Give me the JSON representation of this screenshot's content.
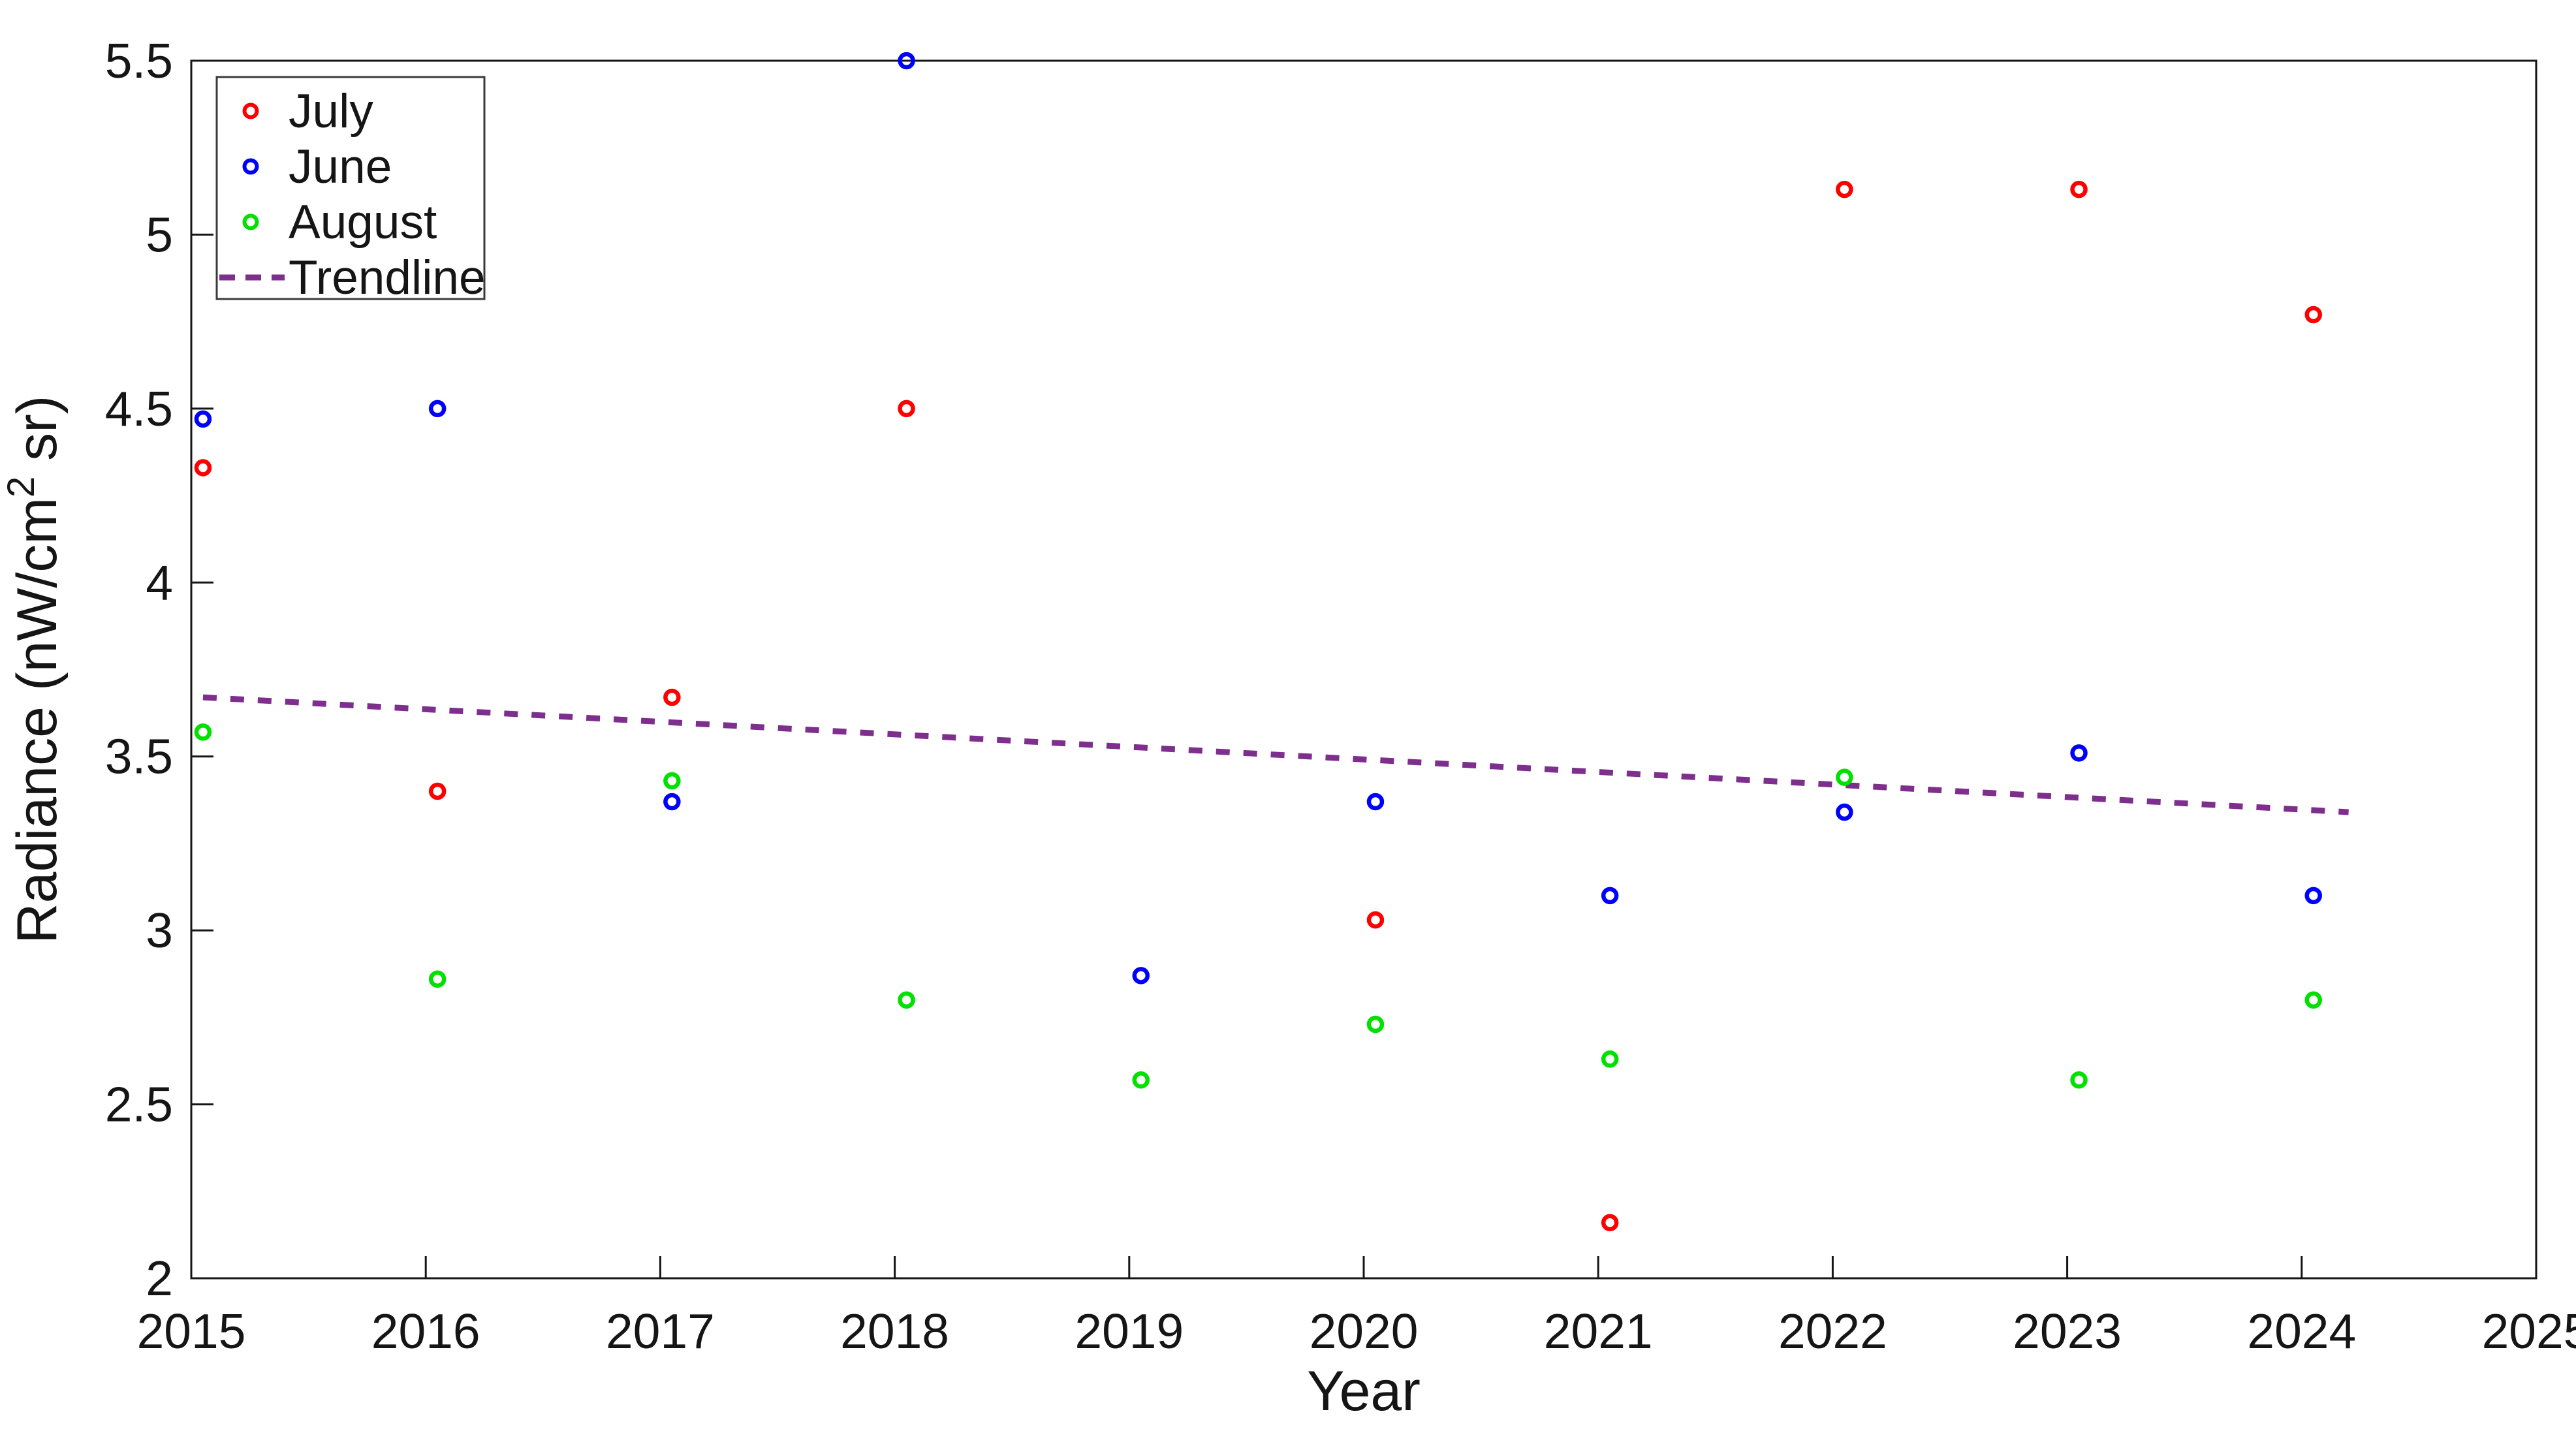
{
  "chart_data": {
    "type": "scatter",
    "title": "",
    "xlabel": "Year",
    "ylabel": "Radiance (nW/cm2 sr)",
    "ylabel_parts": {
      "base": "Radiance (nW/cm",
      "superscript": "2",
      "suffix": " sr)"
    },
    "xlim": [
      2015,
      2025
    ],
    "ylim": [
      2,
      5.5
    ],
    "xticks": [
      2015,
      2016,
      2017,
      2018,
      2019,
      2020,
      2021,
      2022,
      2023,
      2024,
      2025
    ],
    "xtick_labels": [
      "2015",
      "2016",
      "2017",
      "2018",
      "2019",
      "2020",
      "2021",
      "2022",
      "2023",
      "2024",
      "2025"
    ],
    "yticks": [
      2,
      2.5,
      3,
      3.5,
      4,
      4.5,
      5,
      5.5
    ],
    "ytick_labels": [
      "2",
      "2.5",
      "3",
      "3.5",
      "4",
      "4.5",
      "5",
      "5.5"
    ],
    "grid": false,
    "legend_position": "top-left",
    "marker_x_offset": 0.05,
    "series": [
      {
        "name": "July",
        "color": "#ff0000",
        "points": [
          [
            2015,
            4.33
          ],
          [
            2016,
            3.4
          ],
          [
            2017,
            3.67
          ],
          [
            2018,
            4.5
          ],
          [
            2020,
            3.03
          ],
          [
            2021,
            2.16
          ],
          [
            2022,
            5.13
          ],
          [
            2023,
            5.13
          ],
          [
            2024,
            4.77
          ]
        ]
      },
      {
        "name": "June",
        "color": "#0000ff",
        "points": [
          [
            2015,
            4.47
          ],
          [
            2016,
            4.5
          ],
          [
            2017,
            3.37
          ],
          [
            2018,
            5.5
          ],
          [
            2019,
            2.87
          ],
          [
            2020,
            3.37
          ],
          [
            2021,
            3.1
          ],
          [
            2022,
            3.34
          ],
          [
            2023,
            3.51
          ],
          [
            2024,
            3.1
          ]
        ]
      },
      {
        "name": "August",
        "color": "#00e100",
        "points": [
          [
            2015,
            3.57
          ],
          [
            2016,
            2.86
          ],
          [
            2017,
            3.43
          ],
          [
            2018,
            2.8
          ],
          [
            2019,
            2.57
          ],
          [
            2020,
            2.73
          ],
          [
            2021,
            2.63
          ],
          [
            2022,
            3.44
          ],
          [
            2023,
            2.57
          ],
          [
            2024,
            2.8
          ]
        ]
      }
    ],
    "trendline": {
      "name": "Trendline",
      "color": "#7e2f8e",
      "x": [
        2015.05,
        2024.2
      ],
      "y": [
        3.67,
        3.34
      ]
    },
    "legend_items": [
      "July",
      "June",
      "August",
      "Trendline"
    ],
    "axis_color": "#151515"
  }
}
